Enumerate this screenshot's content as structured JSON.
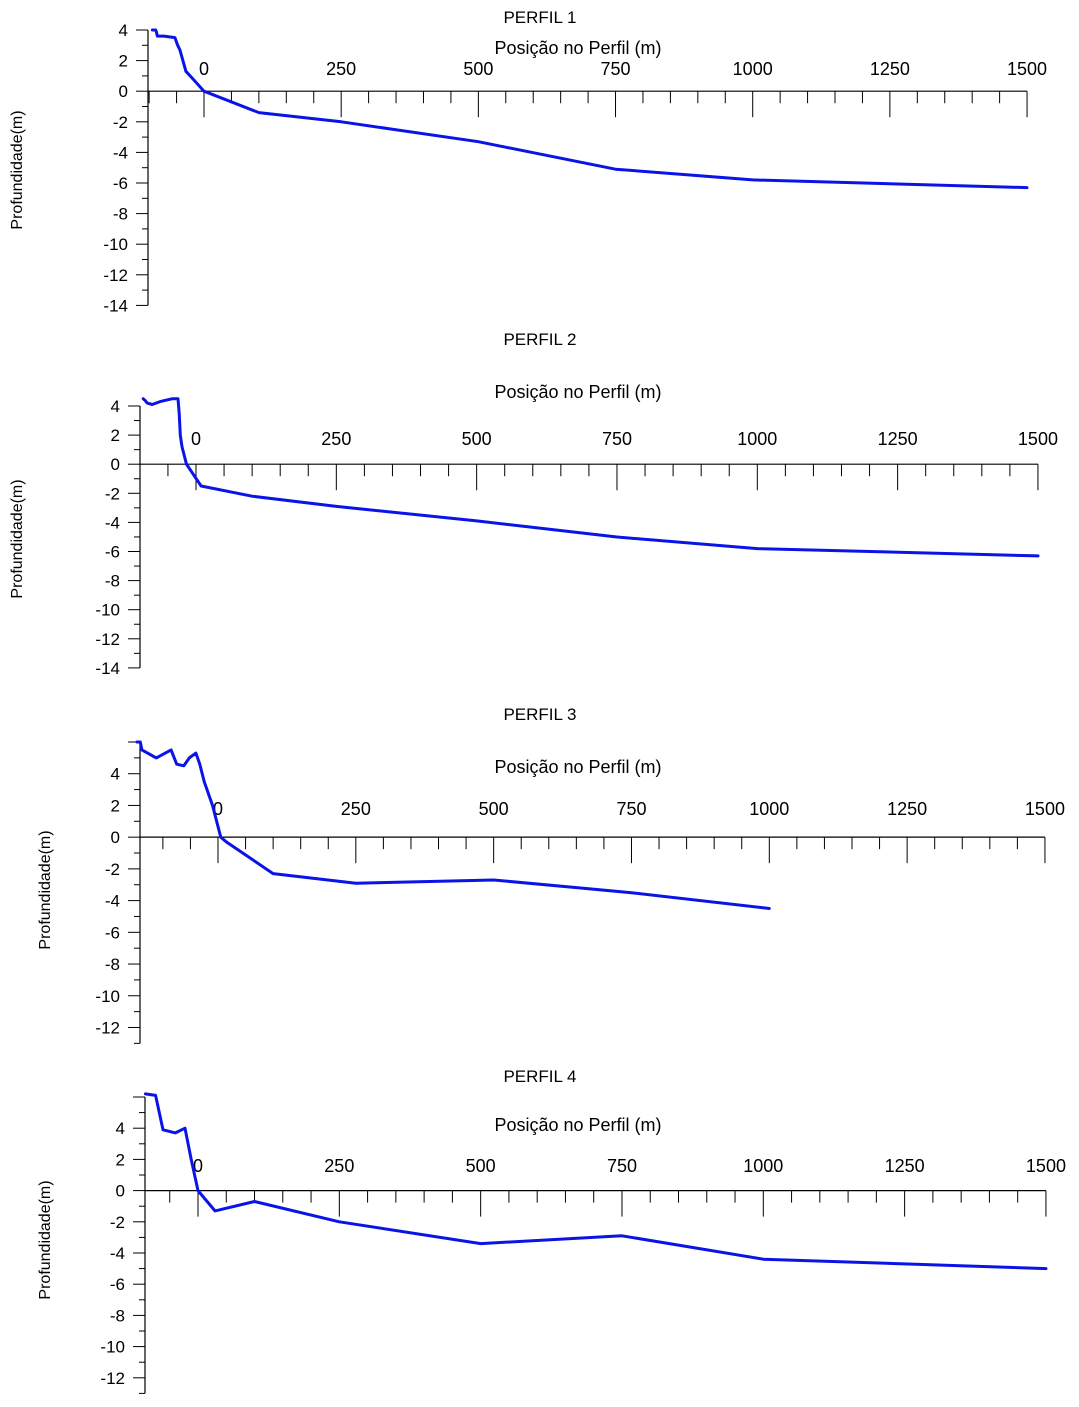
{
  "colors": {
    "series": "#0a14e6",
    "axis": "#000000",
    "background": "#ffffff"
  },
  "chart_data": [
    {
      "type": "line",
      "title": "PERFIL 1",
      "xlabel": "Posição no Perfil (m)",
      "ylabel": "Profundidade(m)",
      "xlim": [
        -100,
        1500
      ],
      "ylim": [
        -14,
        4
      ],
      "x_ticks": [
        "0",
        "250",
        "500",
        "750",
        "1000",
        "1250",
        "1500"
      ],
      "y_ticks": [
        "4",
        "2",
        "0",
        "-2",
        "-4",
        "-6",
        "-8",
        "-10",
        "-12",
        "-14"
      ],
      "grid": false,
      "series": [
        {
          "x": [
            -94,
            -88,
            -87,
            -85,
            -73,
            -53,
            -48,
            -44,
            -33,
            -20,
            0,
            100,
            250,
            500,
            750,
            1000,
            1500
          ],
          "y": [
            4.0,
            4.0,
            3.9,
            3.6,
            3.6,
            3.5,
            3.0,
            2.7,
            1.3,
            0.8,
            0.0,
            -1.4,
            -2.0,
            -3.3,
            -5.1,
            -5.8,
            -6.3
          ]
        }
      ]
    },
    {
      "type": "line",
      "title": "PERFIL 2",
      "xlabel": "Posição no Perfil (m)",
      "ylabel": "Profundidade(m)",
      "xlim": [
        -100,
        1500
      ],
      "ylim": [
        -14,
        4
      ],
      "x_ticks": [
        "0",
        "250",
        "500",
        "750",
        "1000",
        "1250",
        "1500"
      ],
      "y_ticks": [
        "4",
        "2",
        "0",
        "-2",
        "-4",
        "-6",
        "-8",
        "-10",
        "-12",
        "-14"
      ],
      "grid": false,
      "series": [
        {
          "x": [
            -94,
            -91,
            -87,
            -78,
            -64,
            -42,
            -32,
            -30,
            -28,
            -25,
            -17,
            9,
            100,
            250,
            500,
            750,
            1000,
            1500
          ],
          "y": [
            4.5,
            4.4,
            4.2,
            4.1,
            4.3,
            4.5,
            4.5,
            3.5,
            2.0,
            1.2,
            0.0,
            -1.5,
            -2.2,
            -2.9,
            -3.9,
            -5.0,
            -5.8,
            -6.3
          ]
        }
      ]
    },
    {
      "type": "line",
      "title": "PERFIL 3",
      "xlabel": "Posição no Perfil (m)",
      "ylabel": "Profundidade(m)",
      "xlim": [
        -150,
        1500
      ],
      "ylim": [
        -13,
        6
      ],
      "x_ticks": [
        "0",
        "250",
        "500",
        "750",
        "1000",
        "1250",
        "1500"
      ],
      "y_ticks": [
        "4",
        "2",
        "0",
        "-2",
        "-4",
        "-6",
        "-8",
        "-10",
        "-12"
      ],
      "grid": false,
      "series": [
        {
          "x": [
            -147,
            -141,
            -138,
            -112,
            -85,
            -75,
            -62,
            -52,
            -40,
            -33,
            -25,
            -10,
            5,
            15,
            100,
            250,
            500,
            750,
            1000
          ],
          "y": [
            6.0,
            6.0,
            5.5,
            5.0,
            5.5,
            4.6,
            4.5,
            5.0,
            5.3,
            4.6,
            3.5,
            2.0,
            0.0,
            -0.3,
            -2.3,
            -2.9,
            -2.7,
            -3.5,
            -4.5
          ]
        }
      ]
    },
    {
      "type": "line",
      "title": "PERFIL 4",
      "xlabel": "Posição no Perfil (m)",
      "ylabel": "Profundidade(m)",
      "xlim": [
        -100,
        1500
      ],
      "ylim": [
        -13,
        6
      ],
      "x_ticks": [
        "0",
        "250",
        "500",
        "750",
        "1000",
        "1250",
        "1500"
      ],
      "y_ticks": [
        "4",
        "2",
        "0",
        "-2",
        "-4",
        "-6",
        "-8",
        "-10",
        "-12"
      ],
      "grid": false,
      "series": [
        {
          "x": [
            -93,
            -75,
            -62,
            -40,
            -23,
            -12,
            0,
            30,
            100,
            250,
            500,
            750,
            1000,
            1500
          ],
          "y": [
            6.2,
            6.1,
            3.9,
            3.7,
            4.0,
            2.0,
            0.0,
            -1.3,
            -0.7,
            -2.0,
            -3.4,
            -2.9,
            -4.4,
            -5.0
          ]
        }
      ]
    }
  ]
}
